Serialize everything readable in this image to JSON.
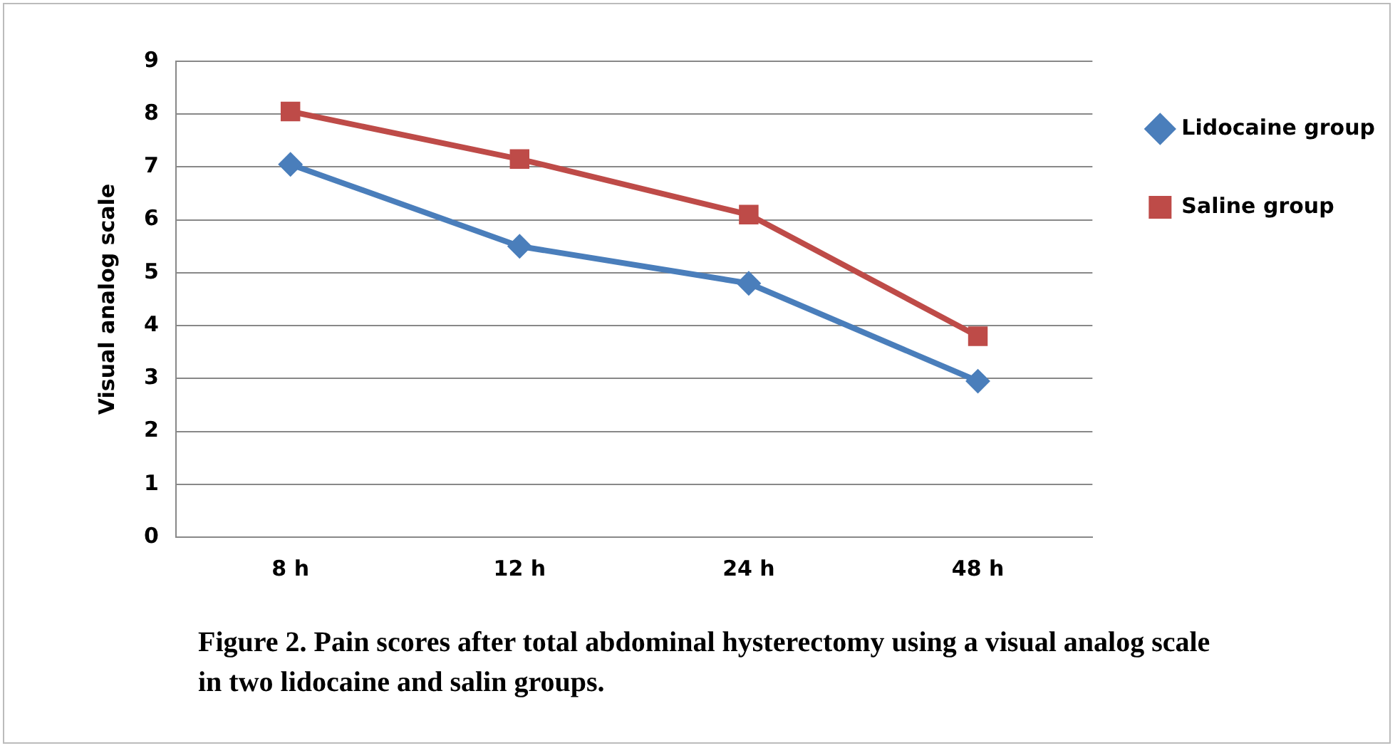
{
  "chart_data": {
    "type": "line",
    "ylabel": "Visual analog scale",
    "categories": [
      "8 h",
      "12 h",
      "24 h",
      "48 h"
    ],
    "series": [
      {
        "name": "Lidocaine group",
        "color": "#4a7ebb",
        "marker": "diamond",
        "values": [
          7.05,
          5.5,
          4.8,
          2.95
        ]
      },
      {
        "name": "Saline group",
        "color": "#be4b48",
        "marker": "square",
        "values": [
          8.05,
          7.15,
          6.1,
          3.8
        ]
      }
    ],
    "ylim": [
      0,
      9
    ],
    "yticks": [
      0,
      1,
      2,
      3,
      4,
      5,
      6,
      7,
      8,
      9
    ],
    "grid": "y",
    "legend": "right",
    "annotations": [
      "Figure 2. Pain scores after total abdominal hysterectomy using a visual analog scale in two lidocaine and salin groups."
    ]
  }
}
